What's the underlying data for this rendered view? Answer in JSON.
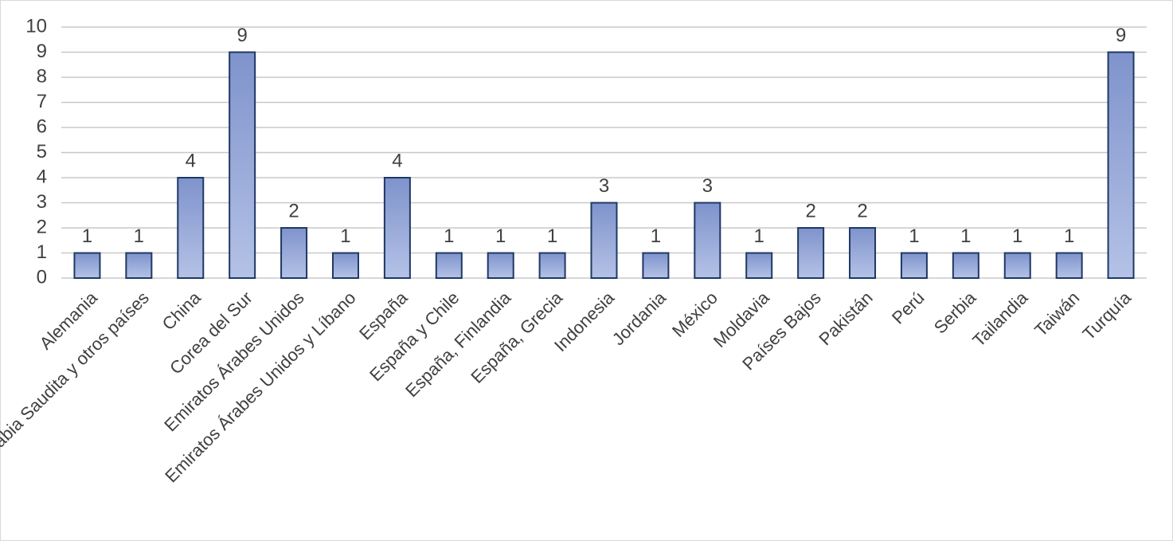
{
  "chart_data": {
    "type": "bar",
    "categories": [
      "Alemania",
      "Arabia Saudita y otros países",
      "China",
      "Corea del Sur",
      "Emiratos Árabes Unidos",
      "Emiratos Árabes Unidos y Líbano",
      "España",
      "España y Chile",
      "España, Finlandia",
      "España, Grecia",
      "Indonesia",
      "Jordania",
      "México",
      "Moldavia",
      "Países Bajos",
      "Pakistán",
      "Perú",
      "Serbia",
      "Tailandia",
      "Taiwán",
      "Turquía"
    ],
    "values": [
      1,
      1,
      4,
      9,
      2,
      1,
      4,
      1,
      1,
      1,
      3,
      1,
      3,
      1,
      2,
      2,
      1,
      1,
      1,
      1,
      9
    ],
    "color": "#8fa4d6",
    "ylim": [
      0,
      10
    ],
    "yticks": [
      0,
      1,
      2,
      3,
      4,
      5,
      6,
      7,
      8,
      9,
      10
    ],
    "grid": true
  }
}
